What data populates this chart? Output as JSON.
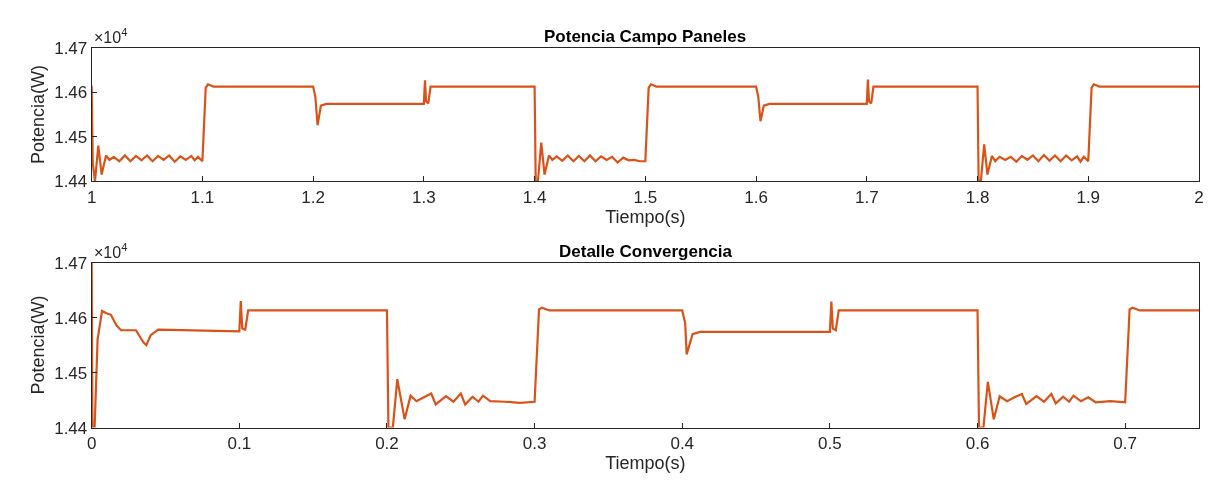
{
  "chart_data": [
    {
      "type": "line",
      "title": "Potencia Campo Paneles",
      "xlabel": "Tiempo(s)",
      "ylabel": "Potencia(W)",
      "annotations": [
        "×10$^{4}$"
      ],
      "x": [
        1.0,
        1.001,
        1.003,
        1.006,
        1.009,
        1.013,
        1.016,
        1.02,
        1.025,
        1.03,
        1.035,
        1.04,
        1.045,
        1.05,
        1.055,
        1.06,
        1.065,
        1.07,
        1.075,
        1.08,
        1.085,
        1.09,
        1.093,
        1.096,
        1.1,
        1.103,
        1.105,
        1.11,
        1.2,
        1.202,
        1.204,
        1.207,
        1.212,
        1.3,
        1.301,
        1.302,
        1.304,
        1.306,
        1.4,
        1.401,
        1.403,
        1.406,
        1.409,
        1.413,
        1.416,
        1.42,
        1.425,
        1.43,
        1.435,
        1.44,
        1.445,
        1.45,
        1.455,
        1.46,
        1.465,
        1.47,
        1.475,
        1.48,
        1.485,
        1.49,
        1.495,
        1.5,
        1.503,
        1.505,
        1.51,
        1.6,
        1.602,
        1.604,
        1.607,
        1.612,
        1.7,
        1.701,
        1.702,
        1.704,
        1.706,
        1.8,
        1.801,
        1.803,
        1.806,
        1.809,
        1.813,
        1.816,
        1.82,
        1.825,
        1.83,
        1.835,
        1.84,
        1.845,
        1.85,
        1.855,
        1.86,
        1.865,
        1.87,
        1.875,
        1.88,
        1.885,
        1.89,
        1.893,
        1.896,
        1.9,
        1.903,
        1.905,
        1.91,
        2.0
      ],
      "series": [
        {
          "color": "#d95319",
          "values": [
            1.4615,
            1.444,
            1.44,
            1.448,
            1.4415,
            1.4458,
            1.4448,
            1.4455,
            1.4445,
            1.4458,
            1.4445,
            1.4457,
            1.4447,
            1.4458,
            1.4445,
            1.4457,
            1.4448,
            1.4458,
            1.4444,
            1.4456,
            1.4448,
            1.4457,
            1.4447,
            1.4455,
            1.4445,
            1.461,
            1.4618,
            1.4613,
            1.4613,
            1.459,
            1.4526,
            1.457,
            1.4574,
            1.4574,
            1.4627,
            1.458,
            1.4575,
            1.4613,
            1.4613,
            1.44,
            1.44,
            1.4487,
            1.4415,
            1.4458,
            1.4448,
            1.4456,
            1.4446,
            1.4458,
            1.4445,
            1.4457,
            1.4445,
            1.4458,
            1.4445,
            1.4456,
            1.4448,
            1.4455,
            1.4442,
            1.4453,
            1.4447,
            1.4448,
            1.4445,
            1.4445,
            1.461,
            1.4618,
            1.4613,
            1.4613,
            1.459,
            1.4535,
            1.457,
            1.4574,
            1.4574,
            1.4629,
            1.458,
            1.4575,
            1.4613,
            1.4613,
            1.44,
            1.44,
            1.4483,
            1.4415,
            1.4457,
            1.4445,
            1.4455,
            1.4448,
            1.4455,
            1.4444,
            1.4457,
            1.4448,
            1.4458,
            1.4445,
            1.4459,
            1.4446,
            1.4458,
            1.4445,
            1.4458,
            1.4447,
            1.4456,
            1.4444,
            1.4455,
            1.4445,
            1.461,
            1.4618,
            1.4613,
            1.4613
          ]
        }
      ],
      "xlim": [
        1,
        2
      ],
      "xticks": [
        1,
        1.1,
        1.2,
        1.3,
        1.4,
        1.5,
        1.6,
        1.7,
        1.8,
        1.9,
        2
      ],
      "ylim": [
        1.44,
        1.47
      ],
      "yticks": [
        1.44,
        1.45,
        1.46,
        1.47
      ]
    },
    {
      "type": "line",
      "title": "Detalle Convergencia",
      "xlabel": "Tiempo(s)",
      "ylabel": "Potencia(W)",
      "annotations": [
        "×10$^{4}$"
      ],
      "x": [
        0,
        0.0005,
        0.002,
        0.004,
        0.007,
        0.01,
        0.013,
        0.017,
        0.02,
        0.03,
        0.035,
        0.037,
        0.04,
        0.045,
        0.1,
        0.101,
        0.102,
        0.104,
        0.106,
        0.2,
        0.201,
        0.204,
        0.207,
        0.212,
        0.216,
        0.22,
        0.225,
        0.23,
        0.233,
        0.24,
        0.245,
        0.25,
        0.253,
        0.258,
        0.262,
        0.265,
        0.27,
        0.28,
        0.29,
        0.3,
        0.303,
        0.305,
        0.31,
        0.4,
        0.402,
        0.403,
        0.407,
        0.412,
        0.5,
        0.501,
        0.502,
        0.504,
        0.506,
        0.6,
        0.601,
        0.604,
        0.607,
        0.611,
        0.615,
        0.62,
        0.625,
        0.63,
        0.633,
        0.64,
        0.645,
        0.65,
        0.653,
        0.658,
        0.662,
        0.665,
        0.67,
        0.675,
        0.68,
        0.69,
        0.7,
        0.703,
        0.705,
        0.71,
        0.75
      ],
      "series": [
        {
          "color": "#d95319",
          "values": [
            1.47,
            1.44,
            1.44,
            1.456,
            1.4612,
            1.4608,
            1.4605,
            1.4585,
            1.4577,
            1.4577,
            1.4555,
            1.455,
            1.4568,
            1.4578,
            1.4575,
            1.463,
            1.458,
            1.4578,
            1.4613,
            1.4613,
            1.44,
            1.44,
            1.4488,
            1.4415,
            1.4458,
            1.4448,
            1.4455,
            1.4462,
            1.4442,
            1.4457,
            1.4447,
            1.4462,
            1.4442,
            1.4456,
            1.4447,
            1.4458,
            1.4448,
            1.4447,
            1.4445,
            1.4447,
            1.4615,
            1.4618,
            1.4613,
            1.4613,
            1.459,
            1.4533,
            1.457,
            1.4574,
            1.4574,
            1.4629,
            1.458,
            1.4577,
            1.4613,
            1.4613,
            1.44,
            1.44,
            1.4483,
            1.4415,
            1.4457,
            1.4448,
            1.4455,
            1.4461,
            1.4443,
            1.4457,
            1.4447,
            1.4461,
            1.4444,
            1.4456,
            1.4447,
            1.4458,
            1.4448,
            1.4455,
            1.4446,
            1.4448,
            1.4446,
            1.4615,
            1.4618,
            1.4613,
            1.4613
          ]
        }
      ],
      "xlim": [
        0,
        0.75
      ],
      "xticks": [
        0,
        0.1,
        0.2,
        0.3,
        0.4,
        0.5,
        0.6,
        0.7
      ],
      "ylim": [
        1.44,
        1.47
      ],
      "yticks": [
        1.44,
        1.45,
        1.46,
        1.47
      ]
    }
  ]
}
